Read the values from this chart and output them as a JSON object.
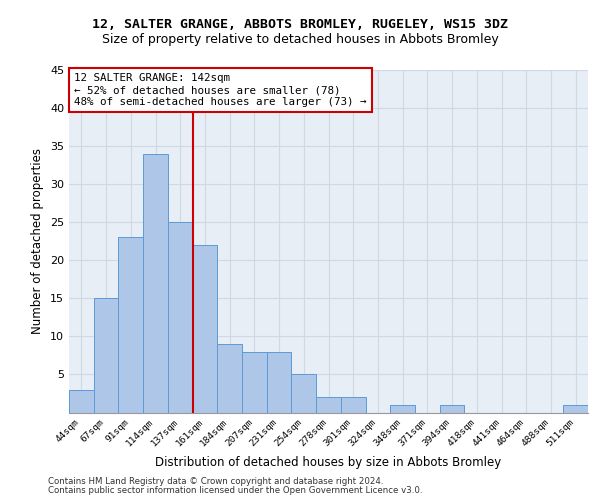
{
  "title1": "12, SALTER GRANGE, ABBOTS BROMLEY, RUGELEY, WS15 3DZ",
  "title2": "Size of property relative to detached houses in Abbots Bromley",
  "xlabel": "Distribution of detached houses by size in Abbots Bromley",
  "ylabel": "Number of detached properties",
  "bin_labels": [
    "44sqm",
    "67sqm",
    "91sqm",
    "114sqm",
    "137sqm",
    "161sqm",
    "184sqm",
    "207sqm",
    "231sqm",
    "254sqm",
    "278sqm",
    "301sqm",
    "324sqm",
    "348sqm",
    "371sqm",
    "394sqm",
    "418sqm",
    "441sqm",
    "464sqm",
    "488sqm",
    "511sqm"
  ],
  "bar_values": [
    3,
    15,
    23,
    34,
    25,
    22,
    9,
    8,
    8,
    5,
    2,
    2,
    0,
    1,
    0,
    1,
    0,
    0,
    0,
    0,
    1
  ],
  "bar_color": "#aec6e8",
  "bar_edge_color": "#5b9bd5",
  "subject_line_color": "#cc0000",
  "annotation_line1": "12 SALTER GRANGE: 142sqm",
  "annotation_line2": "← 52% of detached houses are smaller (78)",
  "annotation_line3": "48% of semi-detached houses are larger (73) →",
  "annotation_box_color": "#ffffff",
  "annotation_box_edge": "#cc0000",
  "ylim": [
    0,
    45
  ],
  "yticks": [
    0,
    5,
    10,
    15,
    20,
    25,
    30,
    35,
    40,
    45
  ],
  "grid_color": "#d0d8e4",
  "bg_color": "#e8eef5",
  "footer1": "Contains HM Land Registry data © Crown copyright and database right 2024.",
  "footer2": "Contains public sector information licensed under the Open Government Licence v3.0."
}
